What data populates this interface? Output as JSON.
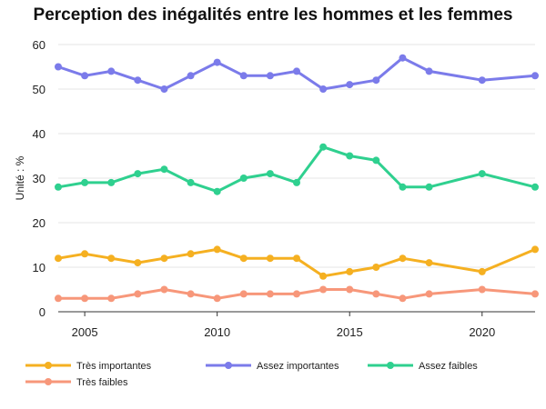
{
  "chart_data": {
    "type": "line",
    "title": "Perception des inégalités entre les hommes et les femmes",
    "xlabel": "",
    "ylabel": "Unité : %",
    "xlim": [
      2004,
      2022
    ],
    "ylim": [
      0,
      60
    ],
    "x_ticks": [
      2005,
      2010,
      2015,
      2020
    ],
    "y_ticks": [
      0,
      10,
      20,
      30,
      40,
      50,
      60
    ],
    "grid": true,
    "legend_position": "bottom",
    "x": [
      2004,
      2005,
      2006,
      2007,
      2008,
      2009,
      2010,
      2011,
      2012,
      2013,
      2014,
      2015,
      2016,
      2017,
      2018,
      2020,
      2022
    ],
    "series": [
      {
        "name": "Très importantes",
        "color": "#f5b021",
        "values": [
          12,
          13,
          12,
          11,
          12,
          13,
          14,
          12,
          12,
          12,
          8,
          9,
          10,
          12,
          11,
          9,
          14
        ]
      },
      {
        "name": "Assez importantes",
        "color": "#7b7bea",
        "values": [
          55,
          53,
          54,
          52,
          50,
          53,
          56,
          53,
          53,
          54,
          50,
          51,
          52,
          57,
          54,
          52,
          53
        ]
      },
      {
        "name": "Assez faibles",
        "color": "#2fd08f",
        "values": [
          28,
          29,
          29,
          31,
          32,
          29,
          27,
          30,
          31,
          29,
          37,
          35,
          34,
          28,
          28,
          31,
          28
        ]
      },
      {
        "name": "Très faibles",
        "color": "#f7977a",
        "values": [
          3,
          3,
          3,
          4,
          5,
          4,
          3,
          4,
          4,
          4,
          5,
          5,
          4,
          3,
          4,
          5,
          4
        ]
      }
    ]
  }
}
